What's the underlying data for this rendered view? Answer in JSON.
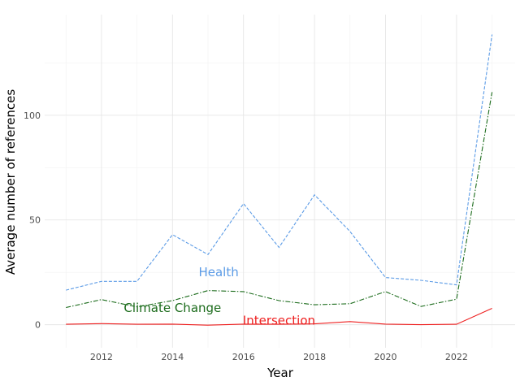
{
  "chart_data": {
    "type": "line",
    "title": "",
    "xlabel": "Year",
    "ylabel": "Average number of references",
    "x": [
      2011,
      2012,
      2013,
      2014,
      2015,
      2016,
      2017,
      2018,
      2019,
      2020,
      2021,
      2022,
      2023
    ],
    "xlim": [
      2010.4,
      2023.65
    ],
    "ylim": [
      -11,
      148
    ],
    "x_ticks": [
      2012,
      2014,
      2016,
      2018,
      2020,
      2022
    ],
    "y_ticks": [
      0,
      50,
      100
    ],
    "grid": true,
    "legend": "none",
    "series": [
      {
        "name": "Health",
        "color": "#5b9be6",
        "dash": "dashed",
        "values": [
          16.5,
          20.7,
          20.7,
          43.0,
          33.5,
          57.8,
          36.9,
          62.0,
          44.5,
          22.5,
          21.2,
          19.0,
          138.5
        ],
        "label_x": 2015.3,
        "label_y": 25
      },
      {
        "name": "Climate Change",
        "color": "#1b6b1b",
        "dash": "dashdot",
        "values": [
          8.2,
          12.0,
          8.5,
          11.5,
          16.3,
          15.8,
          11.5,
          9.5,
          10.0,
          15.8,
          8.7,
          12.2,
          111.0
        ],
        "label_x": 2014.0,
        "label_y": 8
      },
      {
        "name": "Intersection",
        "color": "#ee2020",
        "dash": "solid",
        "values": [
          0.2,
          0.5,
          0.2,
          0.3,
          -0.2,
          0.3,
          0.2,
          0.4,
          1.5,
          0.3,
          0.0,
          0.2,
          7.8
        ],
        "label_x": 2017.0,
        "label_y": 2
      }
    ]
  }
}
